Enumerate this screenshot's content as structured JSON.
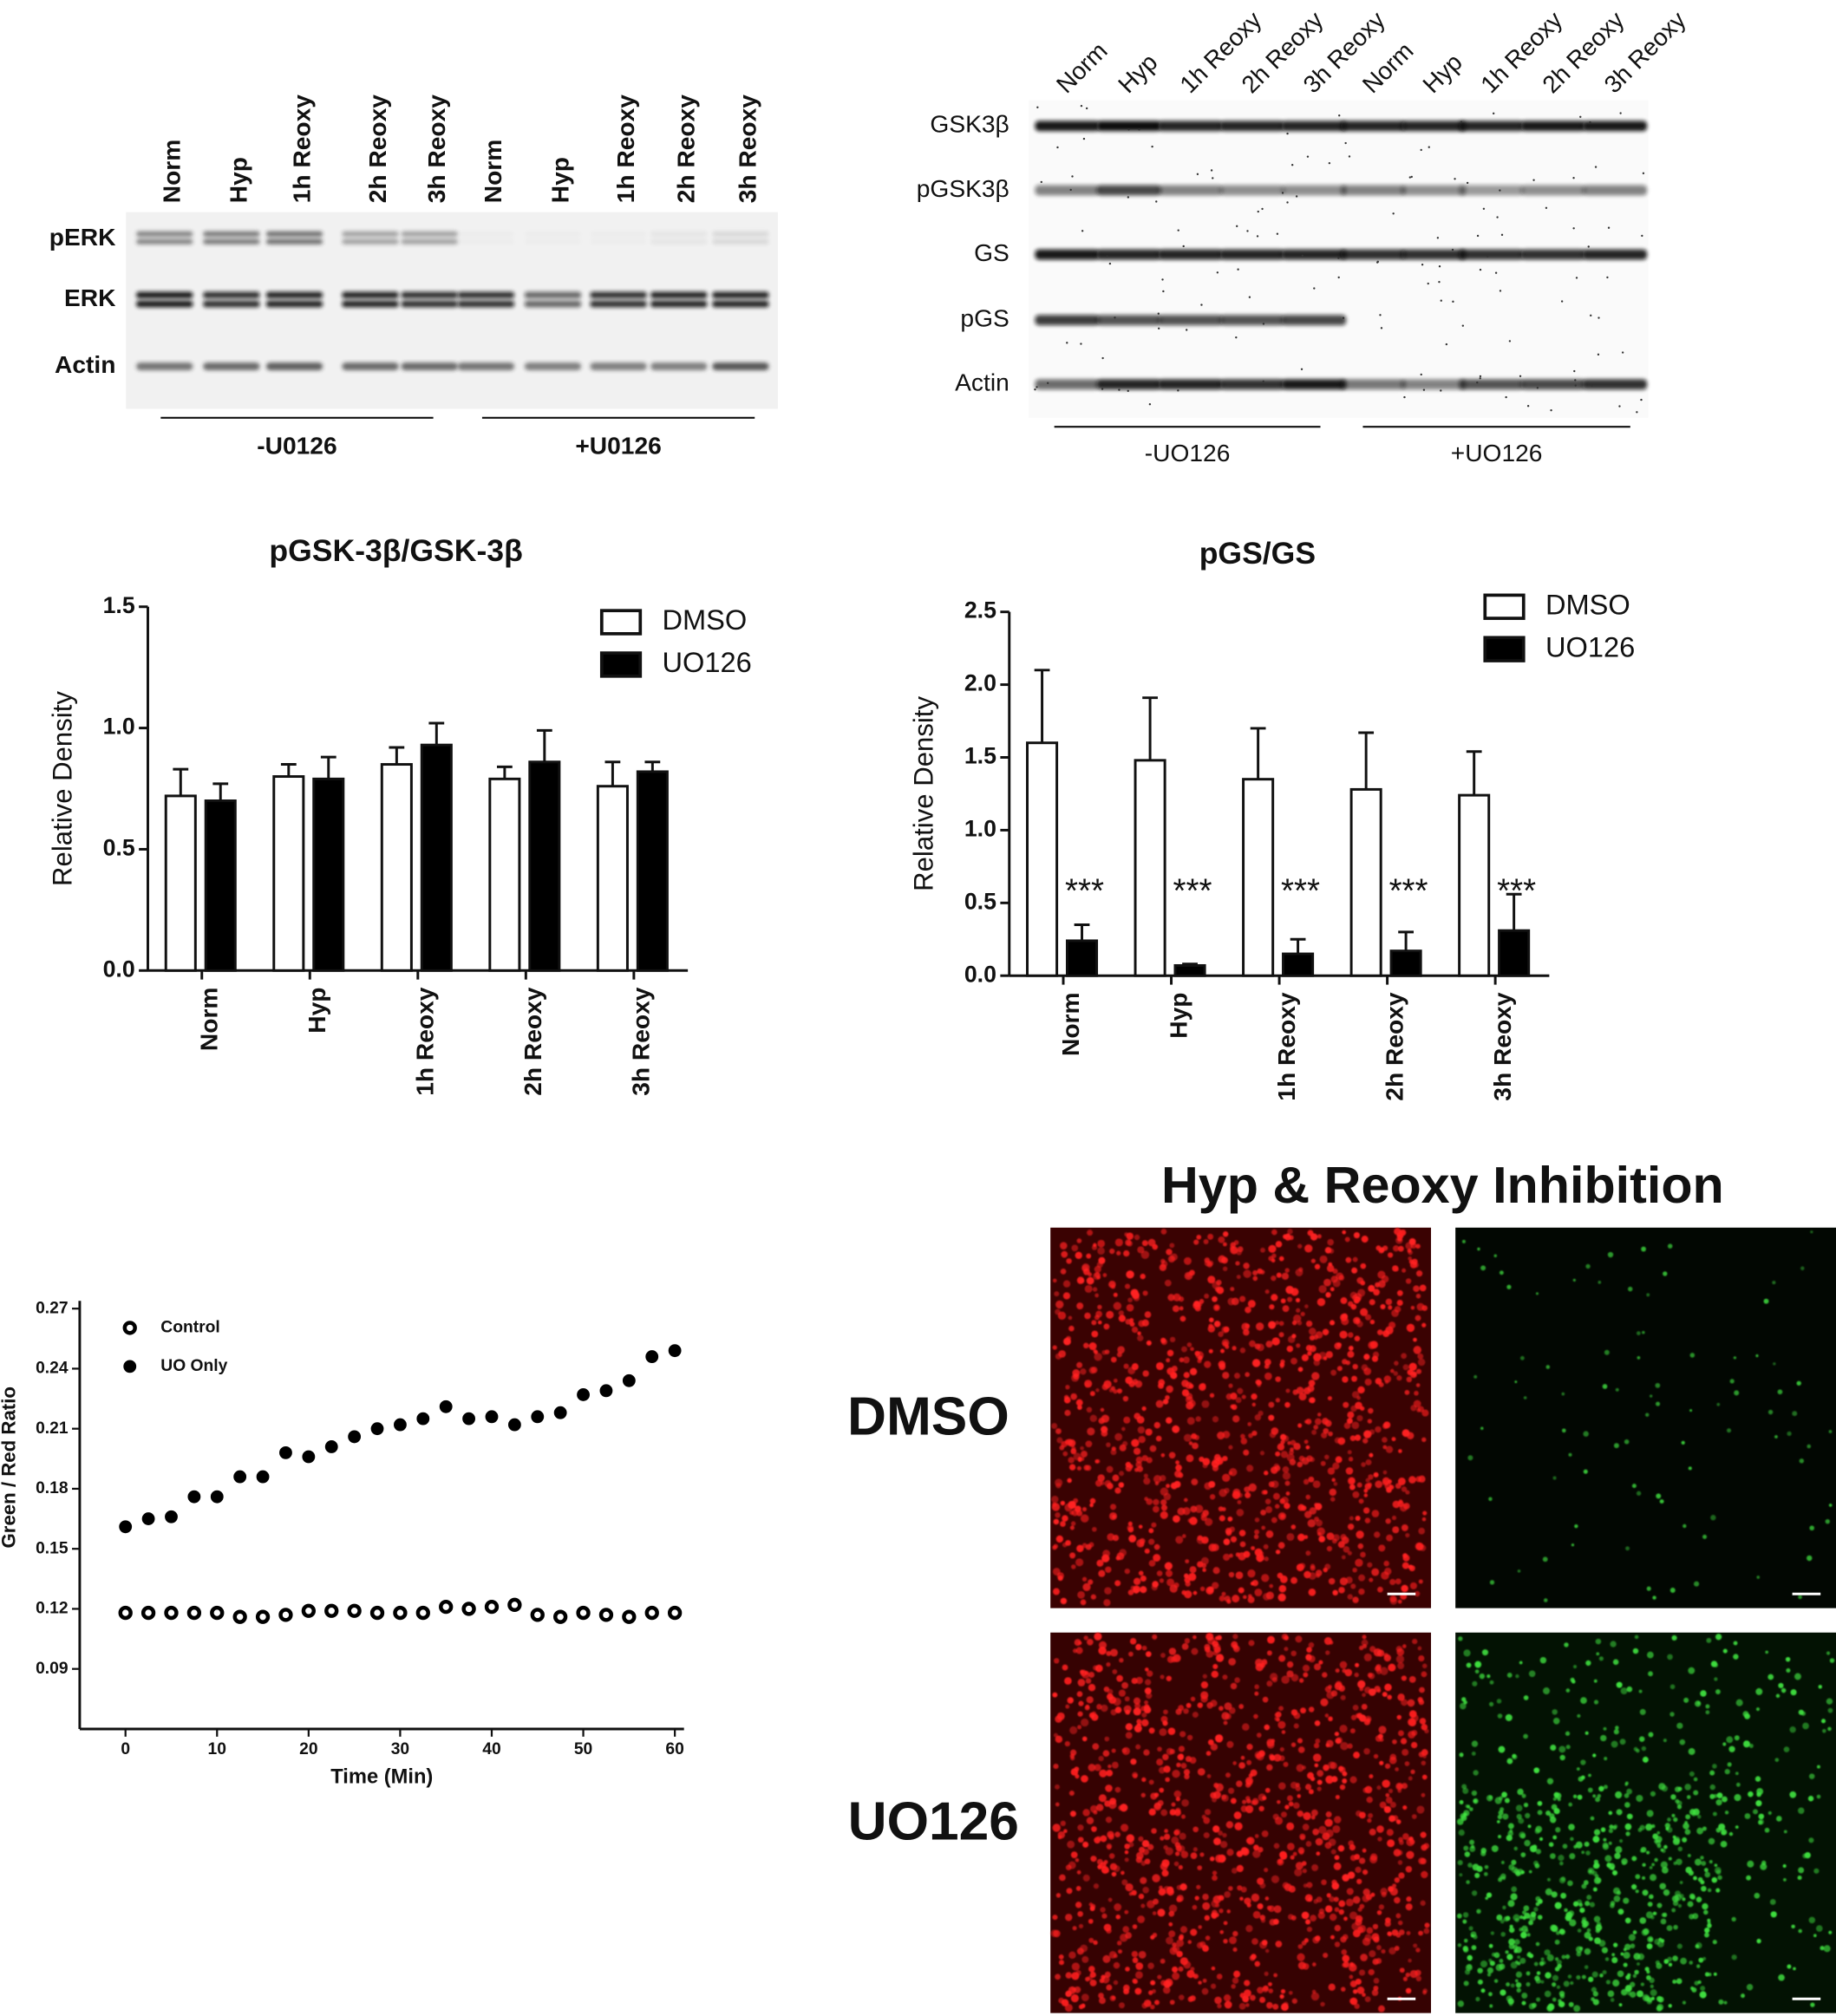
{
  "blots": [
    {
      "lanes": [
        "Norm",
        "Hyp",
        "1h Reoxy",
        "2h Reoxy",
        "3h Reoxy",
        "Norm",
        "Hyp",
        "1h Reoxy",
        "2h Reoxy",
        "3h Reoxy"
      ],
      "rows": [
        "pERK",
        "ERK",
        "Actin"
      ],
      "groups": [
        "-U0126",
        "+U0126"
      ]
    },
    {
      "lanes": [
        "Norm",
        "Hyp",
        "1h Reoxy",
        "2h Reoxy",
        "3h Reoxy",
        "Norm",
        "Hyp",
        "1h Reoxy",
        "2h Reoxy",
        "3h Reoxy"
      ],
      "rows": [
        "GSK3β",
        "pGSK3β",
        "GS",
        "pGS",
        "Actin"
      ],
      "groups": [
        "-UO126",
        "+UO126"
      ]
    }
  ],
  "chart_data": [
    {
      "type": "bar",
      "title": "pGSK-3β/GSK-3β",
      "y_label": "Relative Density",
      "categories": [
        "Norm",
        "Hyp",
        "1h Reoxy",
        "2h Reoxy",
        "3h Reoxy"
      ],
      "series": [
        {
          "name": "DMSO",
          "color": "#ffffff",
          "values": [
            0.72,
            0.8,
            0.85,
            0.79,
            0.76
          ],
          "errors": [
            0.11,
            0.05,
            0.07,
            0.05,
            0.1
          ]
        },
        {
          "name": "UO126",
          "color": "#000000",
          "values": [
            0.7,
            0.79,
            0.93,
            0.86,
            0.82
          ],
          "errors": [
            0.07,
            0.09,
            0.09,
            0.13,
            0.04
          ]
        }
      ],
      "ylim": [
        0,
        1.5
      ],
      "yticks": [
        {
          "value": 0,
          "label": "0.0"
        },
        0.5,
        {
          "value": 1,
          "label": "1.0"
        },
        1.5
      ],
      "legend": "upper right"
    },
    {
      "type": "bar",
      "title": "pGS/GS",
      "y_label": "Relative Density",
      "categories": [
        "Norm",
        "Hyp",
        "1h Reoxy",
        "2h Reoxy",
        "3h Reoxy"
      ],
      "series": [
        {
          "name": "DMSO",
          "color": "#ffffff",
          "values": [
            1.6,
            1.48,
            1.35,
            1.28,
            1.24
          ],
          "errors": [
            0.5,
            0.43,
            0.35,
            0.39,
            0.3
          ]
        },
        {
          "name": "UO126",
          "color": "#000000",
          "values": [
            0.24,
            0.07,
            0.15,
            0.17,
            0.31
          ],
          "errors": [
            0.11,
            0.01,
            0.1,
            0.13,
            0.25
          ]
        }
      ],
      "annotations": [
        "***",
        "***",
        "***",
        "***",
        "***"
      ],
      "ylim": [
        0,
        2.5
      ],
      "yticks": [
        {
          "value": 0,
          "label": "0.0"
        },
        0.5,
        {
          "value": 1,
          "label": "1.0"
        },
        1.5,
        {
          "value": 2,
          "label": "2.0"
        },
        2.5
      ],
      "legend": "upper right"
    },
    {
      "type": "scatter",
      "x_label": "Time (Min)",
      "y_label": "Green / Red Ratio",
      "x": [
        0,
        2.5,
        5,
        7.5,
        10,
        12.5,
        15,
        17.5,
        20,
        22.5,
        25,
        27.5,
        30,
        32.5,
        35,
        37.5,
        40,
        42.5,
        45,
        47.5,
        50,
        52.5,
        55,
        57.5,
        60
      ],
      "series": [
        {
          "name": "Control",
          "color": "#000000",
          "marker": "open",
          "values": [
            0.118,
            0.118,
            0.118,
            0.118,
            0.118,
            0.116,
            0.116,
            0.117,
            0.119,
            0.119,
            0.119,
            0.118,
            0.118,
            0.118,
            0.121,
            0.12,
            0.121,
            0.122,
            0.117,
            0.116,
            0.118,
            0.117,
            0.116,
            0.118,
            0.118
          ]
        },
        {
          "name": "UO Only",
          "color": "#000000",
          "marker": "filled",
          "values": [
            0.161,
            0.165,
            0.166,
            0.176,
            0.176,
            0.186,
            0.186,
            0.198,
            0.196,
            0.201,
            0.206,
            0.21,
            0.212,
            0.215,
            0.221,
            0.215,
            0.216,
            0.212,
            0.216,
            0.218,
            0.227,
            0.229,
            0.234,
            0.246,
            0.249
          ]
        }
      ],
      "xlim": [
        -5,
        61
      ],
      "xticks": [
        0,
        10,
        20,
        30,
        40,
        50,
        60
      ],
      "ylim": [
        0.06,
        0.27
      ],
      "yticks": [
        0.09,
        0.12,
        0.15,
        0.18,
        0.21,
        0.24,
        0.27
      ],
      "legend": "upper left"
    }
  ],
  "micrograph": {
    "title": "Hyp & Reoxy Inhibition",
    "rows": [
      "DMSO",
      "UO126"
    ]
  }
}
